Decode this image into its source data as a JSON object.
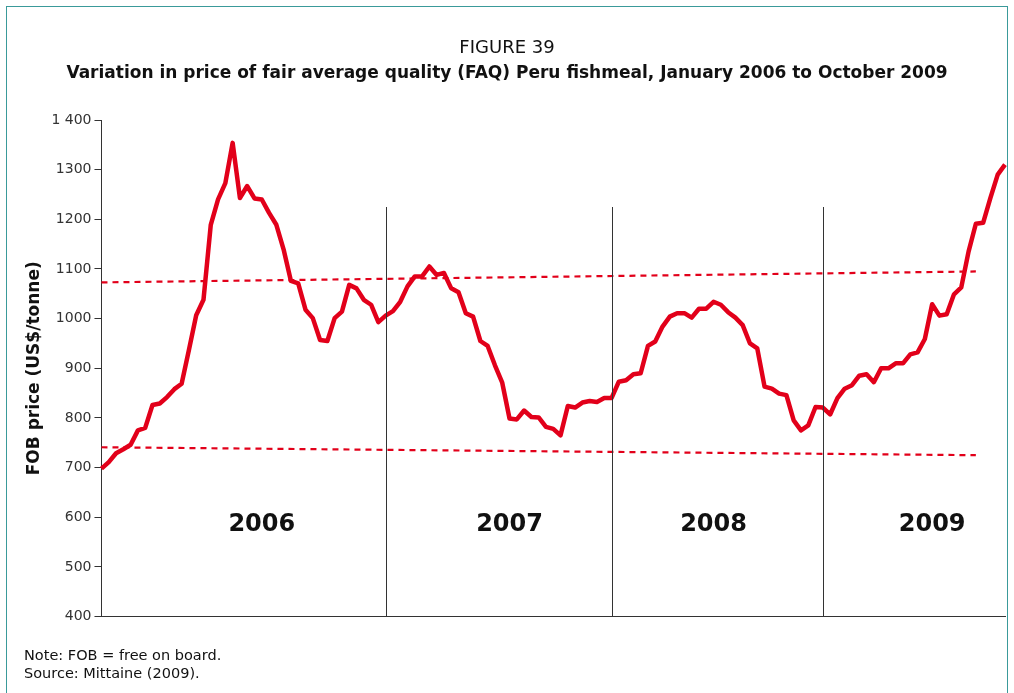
{
  "chart_data": {
    "type": "line",
    "title": "FIGURE 39",
    "subtitle": "Variation in price of fair average quality (FAQ) Peru fishmeal, January 2006 to October 2009",
    "ylabel": "FOB price (US$/tonne)",
    "categories": [
      null,
      null,
      null,
      null,
      null,
      null,
      null,
      null,
      null,
      null,
      null,
      null,
      null,
      null,
      null,
      null,
      null,
      null,
      null,
      null,
      null,
      null,
      "2006",
      null,
      null,
      null,
      null,
      null,
      null,
      null,
      null,
      null,
      null,
      null,
      null,
      null,
      null,
      null,
      null,
      null,
      null,
      null,
      null,
      null,
      null,
      null,
      null,
      null,
      null,
      null,
      null,
      null,
      null,
      null,
      null,
      null,
      "2007",
      null,
      null,
      null,
      null,
      null,
      null,
      null,
      null,
      null,
      null,
      null,
      null,
      null,
      null,
      null,
      null,
      null,
      null,
      null,
      null,
      null,
      null,
      null,
      null,
      null,
      null,
      null,
      "2008",
      null,
      null,
      null,
      null,
      null,
      null,
      null,
      null,
      null,
      null,
      null,
      null,
      null,
      null,
      null,
      null,
      null,
      null,
      null,
      null,
      null,
      null,
      null,
      null,
      null,
      null,
      null,
      null,
      null,
      "2009",
      null,
      null,
      null,
      null,
      null,
      null,
      null,
      null,
      null,
      null
    ],
    "ylim": [
      400,
      1400
    ],
    "yticks": [
      400,
      500,
      600,
      700,
      800,
      900,
      1000,
      1100,
      1200,
      1300,
      {
        "value": 1400,
        "label": "1 400"
      }
    ],
    "grid": false,
    "legend": false,
    "marker": "none",
    "series": [
      {
        "color": "#e2001a",
        "line_style": "solid",
        "values": [
          698,
          711,
          729,
          737,
          746,
          775,
          780,
          826,
          829,
          842,
          858,
          869,
          937,
          1007,
          1038,
          1189,
          1240,
          1273,
          1354,
          1243,
          1267,
          1242,
          1240,
          1213,
          1189,
          1139,
          1076,
          1071,
          1018,
          1001,
          957,
          955,
          1001,
          1014,
          1068,
          1061,
          1038,
          1028,
          993,
          1006,
          1015,
          1034,
          1065,
          1085,
          1085,
          1105,
          1088,
          1092,
          1061,
          1053,
          1011,
          1004,
          955,
          945,
          906,
          871,
          799,
          797,
          815,
          802,
          801,
          782,
          778,
          765,
          824,
          821,
          831,
          834,
          832,
          840,
          840,
          873,
          876,
          888,
          890,
          945,
          954,
          984,
          1004,
          1011,
          1011,
          1002,
          1020,
          1020,
          1034,
          1028,
          1013,
          1002,
          987,
          950,
          940,
          863,
          859,
          849,
          846,
          795,
          775,
          785,
          822,
          821,
          807,
          840,
          859,
          866,
          885,
          888,
          872,
          900,
          900,
          910,
          910,
          928,
          932,
          959,
          1029,
          1006,
          1009,
          1049,
          1063,
          1135,
          1191,
          1193,
          1243,
          1290,
          1310
        ]
      },
      {
        "type": "line",
        "color": "#e2001a",
        "line_style": "dashed",
        "values": [
          1073,
          null,
          null,
          null,
          null,
          null,
          null,
          null,
          null,
          null,
          null,
          null,
          null,
          null,
          null,
          null,
          null,
          null,
          null,
          null,
          null,
          null,
          null,
          null,
          null,
          null,
          null,
          null,
          null,
          null,
          null,
          null,
          null,
          null,
          null,
          null,
          null,
          null,
          null,
          null,
          null,
          null,
          null,
          null,
          null,
          null,
          null,
          null,
          null,
          null,
          null,
          null,
          null,
          null,
          null,
          null,
          null,
          null,
          null,
          null,
          null,
          null,
          null,
          null,
          null,
          null,
          null,
          null,
          null,
          null,
          null,
          null,
          null,
          null,
          null,
          null,
          null,
          null,
          null,
          null,
          null,
          null,
          null,
          null,
          null,
          null,
          null,
          null,
          null,
          null,
          null,
          null,
          null,
          null,
          null,
          null,
          null,
          null,
          null,
          null,
          null,
          null,
          null,
          null,
          null,
          null,
          null,
          null,
          null,
          null,
          null,
          null,
          null,
          null,
          null,
          null,
          null,
          null,
          null,
          null,
          1095,
          null,
          null,
          null,
          null
        ]
      },
      {
        "type": "line",
        "color": "#e2001a",
        "line_style": "dashed",
        "values": [
          741,
          null,
          null,
          null,
          null,
          null,
          null,
          null,
          null,
          null,
          null,
          null,
          null,
          null,
          null,
          null,
          null,
          null,
          null,
          null,
          null,
          null,
          null,
          null,
          null,
          null,
          null,
          null,
          null,
          null,
          null,
          null,
          null,
          null,
          null,
          null,
          null,
          null,
          null,
          null,
          null,
          null,
          null,
          null,
          null,
          null,
          null,
          null,
          null,
          null,
          null,
          null,
          null,
          null,
          null,
          null,
          null,
          null,
          null,
          null,
          null,
          null,
          null,
          null,
          null,
          null,
          null,
          null,
          null,
          null,
          null,
          null,
          null,
          null,
          null,
          null,
          null,
          null,
          null,
          null,
          null,
          null,
          null,
          null,
          null,
          null,
          null,
          null,
          null,
          null,
          null,
          null,
          null,
          null,
          null,
          null,
          null,
          null,
          null,
          null,
          null,
          null,
          null,
          null,
          null,
          null,
          null,
          null,
          null,
          null,
          null,
          null,
          null,
          null,
          null,
          null,
          null,
          null,
          null,
          null,
          725,
          null,
          null,
          null,
          null
        ]
      }
    ],
    "annotations": [
      "Note: FOB = free on board.",
      "Source: Mittaine (2009)."
    ]
  }
}
